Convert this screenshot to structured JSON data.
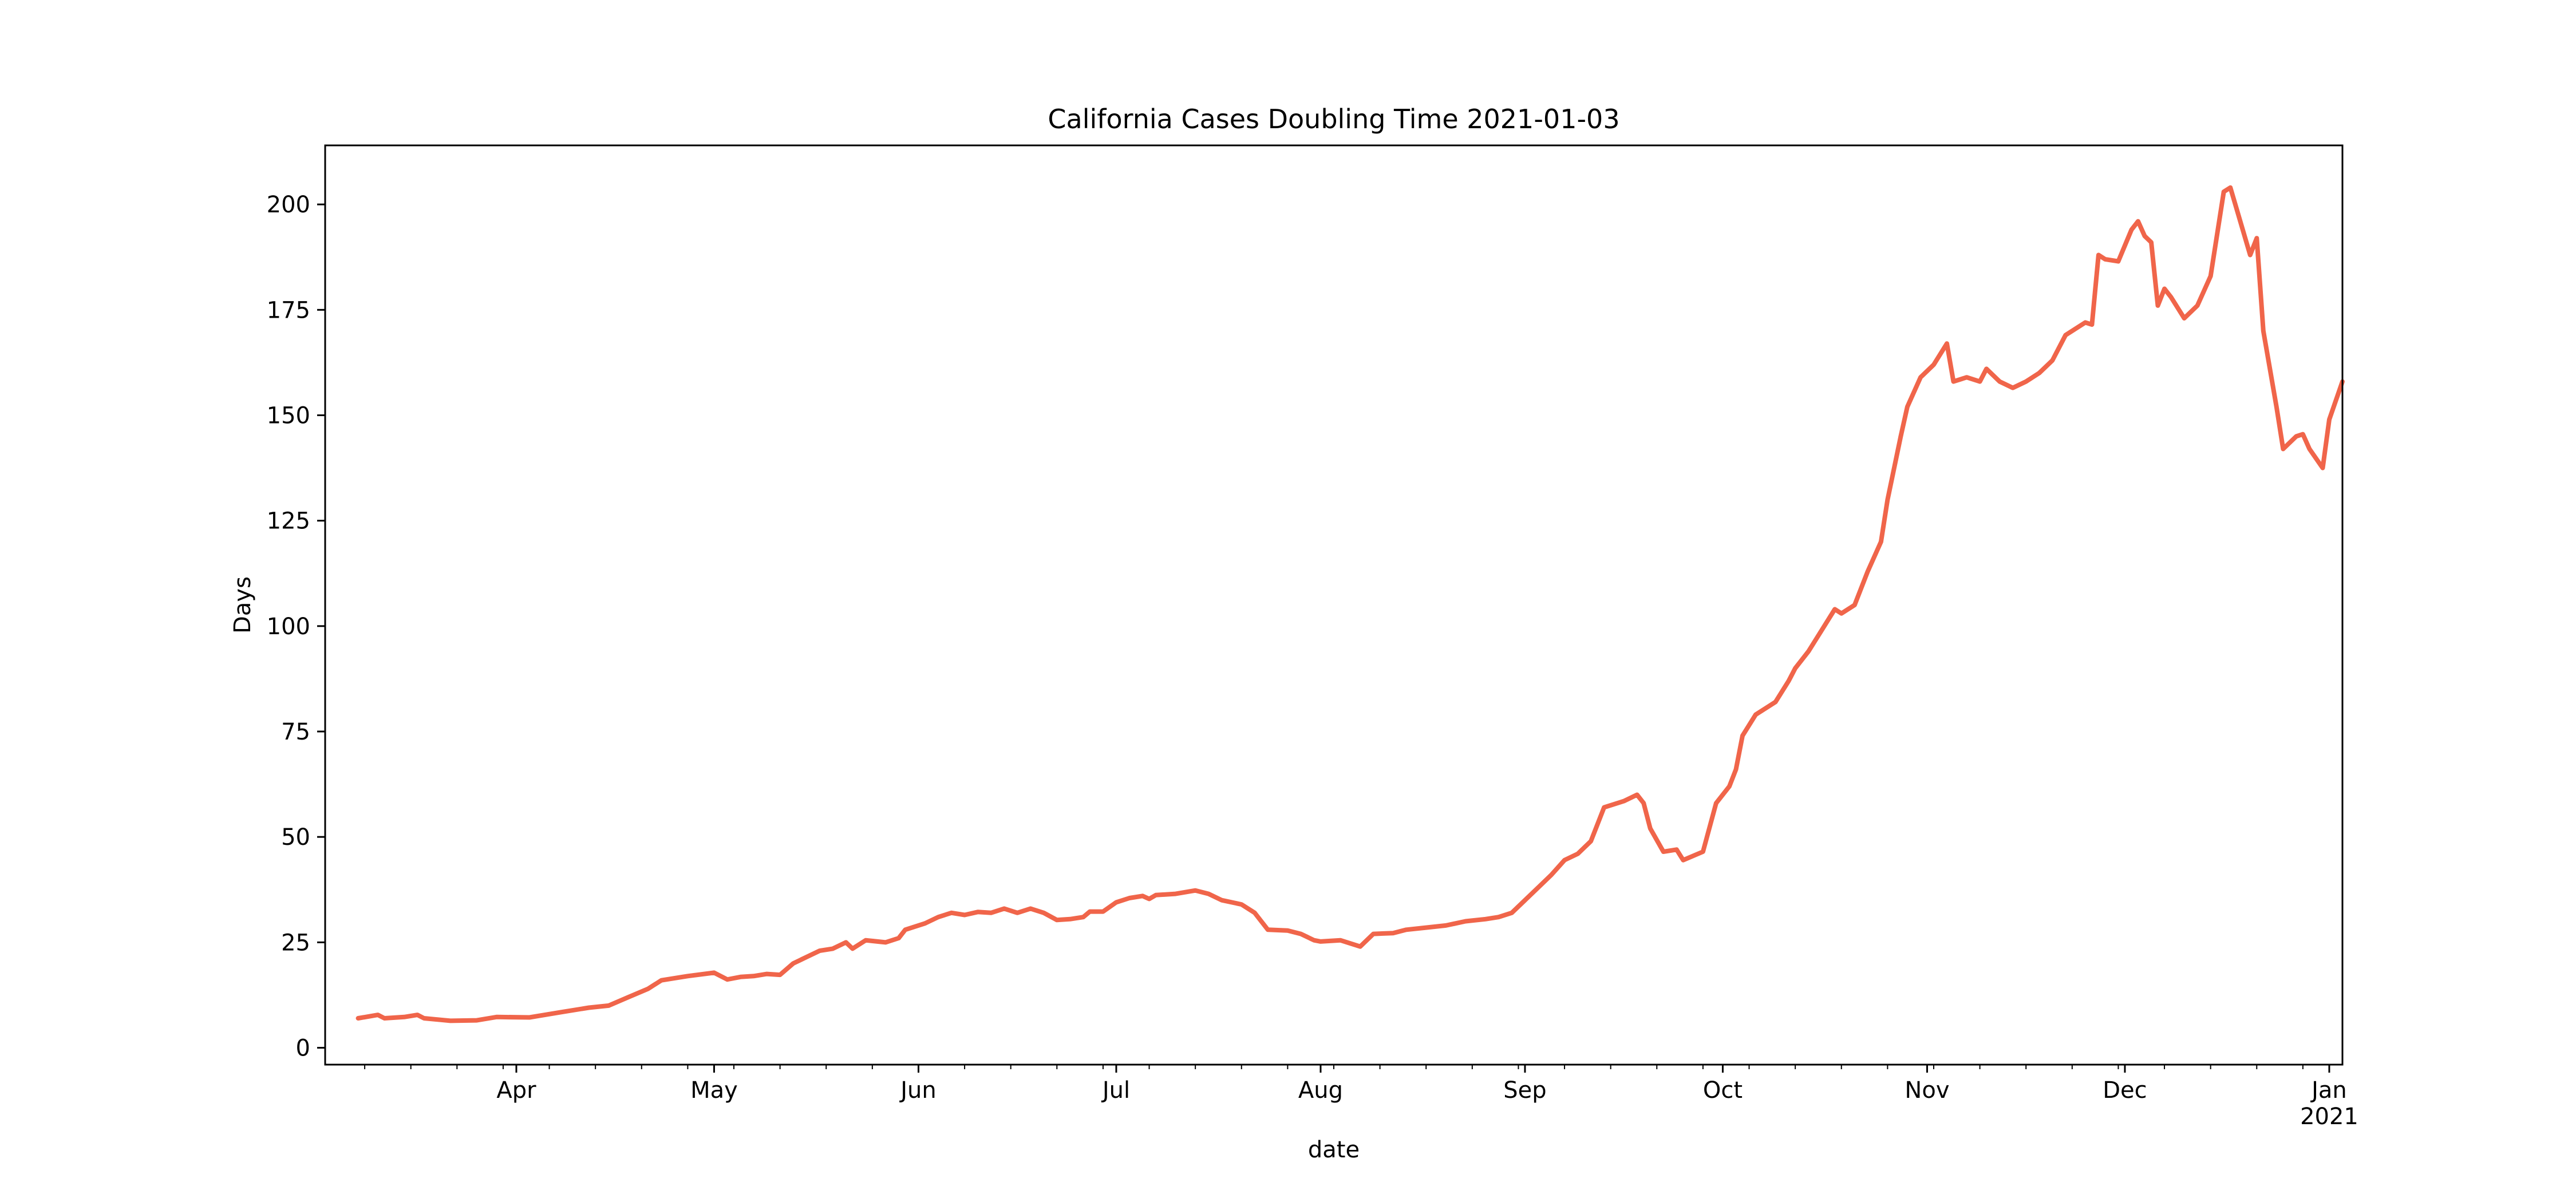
{
  "chart_data": {
    "type": "line",
    "title": "California Cases Doubling Time 2021-01-03",
    "xlabel": "date",
    "ylabel": "Days",
    "x_type": "date",
    "xlim": [
      "2020-03-03",
      "2021-01-03"
    ],
    "ylim": [
      -4,
      214
    ],
    "grid": false,
    "legend": null,
    "line_color": "#f0654a",
    "x_ticks": [
      {
        "date": "2020-04-01",
        "label": "Apr"
      },
      {
        "date": "2020-05-01",
        "label": "May"
      },
      {
        "date": "2020-06-01",
        "label": "Jun"
      },
      {
        "date": "2020-07-01",
        "label": "Jul"
      },
      {
        "date": "2020-08-01",
        "label": "Aug"
      },
      {
        "date": "2020-09-01",
        "label": "Sep"
      },
      {
        "date": "2020-10-01",
        "label": "Oct"
      },
      {
        "date": "2020-11-01",
        "label": "Nov"
      },
      {
        "date": "2020-12-01",
        "label": "Dec"
      },
      {
        "date": "2021-01-01",
        "label": "Jan",
        "sublabel": "2021"
      }
    ],
    "y_ticks": [
      0,
      25,
      50,
      75,
      100,
      125,
      150,
      175,
      200
    ],
    "series": [
      {
        "points": [
          [
            "2020-03-08",
            7
          ],
          [
            "2020-03-11",
            7.8
          ],
          [
            "2020-03-12",
            7
          ],
          [
            "2020-03-15",
            7.3
          ],
          [
            "2020-03-17",
            7.8
          ],
          [
            "2020-03-18",
            7
          ],
          [
            "2020-03-22",
            6.4
          ],
          [
            "2020-03-26",
            6.5
          ],
          [
            "2020-03-29",
            7.3
          ],
          [
            "2020-04-03",
            7.2
          ],
          [
            "2020-04-08",
            8.5
          ],
          [
            "2020-04-12",
            9.5
          ],
          [
            "2020-04-15",
            10
          ],
          [
            "2020-04-18",
            12
          ],
          [
            "2020-04-21",
            14
          ],
          [
            "2020-04-23",
            16
          ],
          [
            "2020-04-27",
            17
          ],
          [
            "2020-05-01",
            17.8
          ],
          [
            "2020-05-03",
            16.2
          ],
          [
            "2020-05-05",
            16.8
          ],
          [
            "2020-05-07",
            17
          ],
          [
            "2020-05-09",
            17.5
          ],
          [
            "2020-05-11",
            17.3
          ],
          [
            "2020-05-13",
            20
          ],
          [
            "2020-05-15",
            21.5
          ],
          [
            "2020-05-17",
            23
          ],
          [
            "2020-05-19",
            23.5
          ],
          [
            "2020-05-21",
            25
          ],
          [
            "2020-05-22",
            23.5
          ],
          [
            "2020-05-24",
            25.5
          ],
          [
            "2020-05-27",
            25
          ],
          [
            "2020-05-29",
            26
          ],
          [
            "2020-05-30",
            28
          ],
          [
            "2020-06-02",
            29.5
          ],
          [
            "2020-06-04",
            31
          ],
          [
            "2020-06-06",
            32
          ],
          [
            "2020-06-08",
            31.5
          ],
          [
            "2020-06-10",
            32.2
          ],
          [
            "2020-06-12",
            32
          ],
          [
            "2020-06-14",
            33
          ],
          [
            "2020-06-16",
            32
          ],
          [
            "2020-06-18",
            33
          ],
          [
            "2020-06-20",
            32
          ],
          [
            "2020-06-22",
            30.3
          ],
          [
            "2020-06-24",
            30.5
          ],
          [
            "2020-06-26",
            31
          ],
          [
            "2020-06-27",
            32.3
          ],
          [
            "2020-06-29",
            32.3
          ],
          [
            "2020-07-01",
            34.5
          ],
          [
            "2020-07-03",
            35.5
          ],
          [
            "2020-07-05",
            36
          ],
          [
            "2020-07-06",
            35.3
          ],
          [
            "2020-07-07",
            36.2
          ],
          [
            "2020-07-10",
            36.5
          ],
          [
            "2020-07-13",
            37.3
          ],
          [
            "2020-07-15",
            36.5
          ],
          [
            "2020-07-17",
            35
          ],
          [
            "2020-07-20",
            34
          ],
          [
            "2020-07-22",
            32
          ],
          [
            "2020-07-24",
            28
          ],
          [
            "2020-07-27",
            27.8
          ],
          [
            "2020-07-29",
            27
          ],
          [
            "2020-07-31",
            25.5
          ],
          [
            "2020-08-01",
            25.2
          ],
          [
            "2020-08-04",
            25.5
          ],
          [
            "2020-08-07",
            24
          ],
          [
            "2020-08-09",
            27
          ],
          [
            "2020-08-12",
            27.2
          ],
          [
            "2020-08-14",
            28
          ],
          [
            "2020-08-17",
            28.5
          ],
          [
            "2020-08-20",
            29
          ],
          [
            "2020-08-23",
            30
          ],
          [
            "2020-08-26",
            30.5
          ],
          [
            "2020-08-28",
            31
          ],
          [
            "2020-08-30",
            32
          ],
          [
            "2020-09-01",
            35
          ],
          [
            "2020-09-03",
            38
          ],
          [
            "2020-09-05",
            41
          ],
          [
            "2020-09-07",
            44.5
          ],
          [
            "2020-09-09",
            46
          ],
          [
            "2020-09-11",
            49
          ],
          [
            "2020-09-13",
            57
          ],
          [
            "2020-09-16",
            58.5
          ],
          [
            "2020-09-18",
            60
          ],
          [
            "2020-09-19",
            58
          ],
          [
            "2020-09-20",
            52
          ],
          [
            "2020-09-22",
            46.5
          ],
          [
            "2020-09-24",
            47
          ],
          [
            "2020-09-25",
            44.5
          ],
          [
            "2020-09-28",
            46.5
          ],
          [
            "2020-09-30",
            58
          ],
          [
            "2020-10-02",
            62
          ],
          [
            "2020-10-03",
            66
          ],
          [
            "2020-10-04",
            74
          ],
          [
            "2020-10-06",
            79
          ],
          [
            "2020-10-08",
            81
          ],
          [
            "2020-10-09",
            82
          ],
          [
            "2020-10-11",
            87
          ],
          [
            "2020-10-12",
            90
          ],
          [
            "2020-10-14",
            94
          ],
          [
            "2020-10-16",
            99
          ],
          [
            "2020-10-18",
            104
          ],
          [
            "2020-10-19",
            103
          ],
          [
            "2020-10-21",
            105
          ],
          [
            "2020-10-23",
            113
          ],
          [
            "2020-10-25",
            120
          ],
          [
            "2020-10-26",
            130
          ],
          [
            "2020-10-28",
            145
          ],
          [
            "2020-10-29",
            152
          ],
          [
            "2020-10-31",
            159
          ],
          [
            "2020-11-02",
            162
          ],
          [
            "2020-11-04",
            167
          ],
          [
            "2020-11-05",
            158
          ],
          [
            "2020-11-07",
            159
          ],
          [
            "2020-11-09",
            158
          ],
          [
            "2020-11-10",
            161
          ],
          [
            "2020-11-12",
            158
          ],
          [
            "2020-11-14",
            156.5
          ],
          [
            "2020-11-16",
            158
          ],
          [
            "2020-11-18",
            160
          ],
          [
            "2020-11-20",
            163
          ],
          [
            "2020-11-22",
            169
          ],
          [
            "2020-11-24",
            171
          ],
          [
            "2020-11-25",
            172
          ],
          [
            "2020-11-26",
            171.5
          ],
          [
            "2020-11-27",
            188
          ],
          [
            "2020-11-28",
            187
          ],
          [
            "2020-11-30",
            186.5
          ],
          [
            "2020-12-02",
            194
          ],
          [
            "2020-12-03",
            196
          ],
          [
            "2020-12-04",
            192.5
          ],
          [
            "2020-12-05",
            191
          ],
          [
            "2020-12-06",
            176
          ],
          [
            "2020-12-07",
            180
          ],
          [
            "2020-12-08",
            178
          ],
          [
            "2020-12-10",
            173
          ],
          [
            "2020-12-12",
            176
          ],
          [
            "2020-12-14",
            183
          ],
          [
            "2020-12-16",
            203
          ],
          [
            "2020-12-17",
            204
          ],
          [
            "2020-12-20",
            188
          ],
          [
            "2020-12-21",
            192
          ],
          [
            "2020-12-22",
            170
          ],
          [
            "2020-12-24",
            152
          ],
          [
            "2020-12-25",
            142
          ],
          [
            "2020-12-27",
            145
          ],
          [
            "2020-12-28",
            145.5
          ],
          [
            "2020-12-29",
            142
          ],
          [
            "2020-12-31",
            137.5
          ],
          [
            "2021-01-01",
            149
          ],
          [
            "2021-01-03",
            158
          ]
        ]
      }
    ]
  }
}
